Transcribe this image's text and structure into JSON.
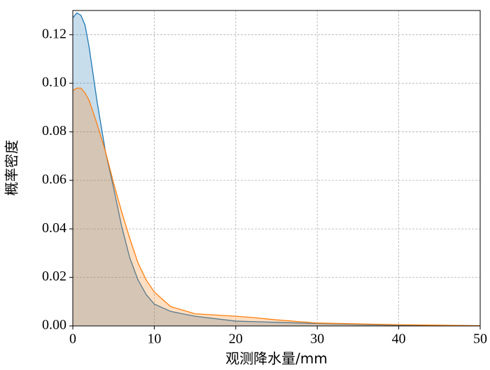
{
  "chart_data": {
    "type": "area",
    "x_label": "观测降水量/mm",
    "y_label": "概率密度",
    "x": [
      0,
      0.5,
      1,
      1.5,
      2,
      3,
      4,
      5,
      6,
      7,
      8,
      9,
      10,
      12,
      15,
      20,
      22,
      25,
      30,
      40,
      50
    ],
    "series": [
      {
        "color": "#1f77b4",
        "values": [
          0.127,
          0.129,
          0.128,
          0.124,
          0.115,
          0.092,
          0.072,
          0.057,
          0.041,
          0.028,
          0.019,
          0.013,
          0.009,
          0.006,
          0.004,
          0.002,
          0.0018,
          0.0015,
          0.001,
          0.0003,
          0.0001
        ]
      },
      {
        "color": "#ff7f0e",
        "values": [
          0.097,
          0.098,
          0.098,
          0.096,
          0.093,
          0.083,
          0.072,
          0.059,
          0.047,
          0.036,
          0.026,
          0.019,
          0.014,
          0.008,
          0.005,
          0.004,
          0.0035,
          0.0025,
          0.0012,
          0.0005,
          0.0001
        ]
      }
    ],
    "xlim": [
      0,
      50
    ],
    "xticks": [
      0,
      10,
      20,
      30,
      40,
      50
    ],
    "ylim": [
      0,
      0.13
    ],
    "yticks": [
      {
        "value": 0,
        "label": "0.00"
      },
      {
        "value": 0.02,
        "label": "0.02"
      },
      {
        "value": 0.04,
        "label": "0.04"
      },
      {
        "value": 0.06,
        "label": "0.06"
      },
      {
        "value": 0.08,
        "label": "0.08"
      },
      {
        "value": 0.1,
        "label": "0.10"
      },
      {
        "value": 0.12,
        "label": "0.12"
      }
    ],
    "grid": true
  }
}
